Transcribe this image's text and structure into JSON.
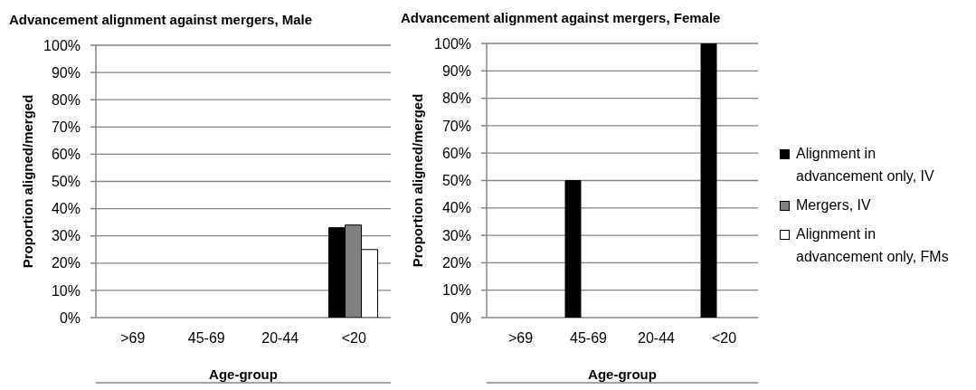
{
  "chart_data": [
    {
      "type": "bar",
      "title": "Advancement alignment against mergers, Male",
      "xlabel": "Age-group",
      "ylabel": "Proportion aligned/merged",
      "categories": [
        ">69",
        "45-69",
        "20-44",
        "<20"
      ],
      "series": [
        {
          "color": "#000000",
          "values": [
            null,
            null,
            null,
            33
          ]
        },
        {
          "color": "#808080",
          "values": [
            null,
            null,
            null,
            34
          ]
        },
        {
          "color": "#ffffff",
          "values": [
            null,
            null,
            null,
            25
          ]
        }
      ],
      "ylim": [
        0,
        100
      ],
      "yticks": [
        {
          "value": 0,
          "label": "0%"
        },
        {
          "value": 10,
          "label": "10%"
        },
        {
          "value": 20,
          "label": "20%"
        },
        {
          "value": 30,
          "label": "30%"
        },
        {
          "value": 40,
          "label": "40%"
        },
        {
          "value": 50,
          "label": "50%"
        },
        {
          "value": 60,
          "label": "60%"
        },
        {
          "value": 70,
          "label": "70%"
        },
        {
          "value": 80,
          "label": "80%"
        },
        {
          "value": 90,
          "label": "90%"
        },
        {
          "value": 100,
          "label": "100%"
        }
      ],
      "grid": "y"
    },
    {
      "type": "bar",
      "title": "Advancement alignment against mergers, Female",
      "xlabel": "Age-group",
      "ylabel": "Proportion aligned/merged",
      "categories": [
        ">69",
        "45-69",
        "20-44",
        "<20"
      ],
      "series": [
        {
          "name": "Alignment in advancement only, IV",
          "color": "#000000",
          "values": [
            null,
            50,
            null,
            100
          ]
        },
        {
          "name": "Mergers, IV",
          "color": "#808080",
          "values": [
            null,
            null,
            null,
            null
          ]
        },
        {
          "name": "Alignment in advancement only, FMs",
          "color": "#ffffff",
          "values": [
            null,
            null,
            null,
            null
          ]
        }
      ],
      "ylim": [
        0,
        100
      ],
      "yticks": [
        {
          "value": 0,
          "label": "0%"
        },
        {
          "value": 10,
          "label": "10%"
        },
        {
          "value": 20,
          "label": "20%"
        },
        {
          "value": 30,
          "label": "30%"
        },
        {
          "value": 40,
          "label": "40%"
        },
        {
          "value": 50,
          "label": "50%"
        },
        {
          "value": 60,
          "label": "60%"
        },
        {
          "value": 70,
          "label": "70%"
        },
        {
          "value": 80,
          "label": "80%"
        },
        {
          "value": 90,
          "label": "90%"
        },
        {
          "value": 100,
          "label": "100%"
        }
      ],
      "grid": "y",
      "legend": "right"
    }
  ]
}
